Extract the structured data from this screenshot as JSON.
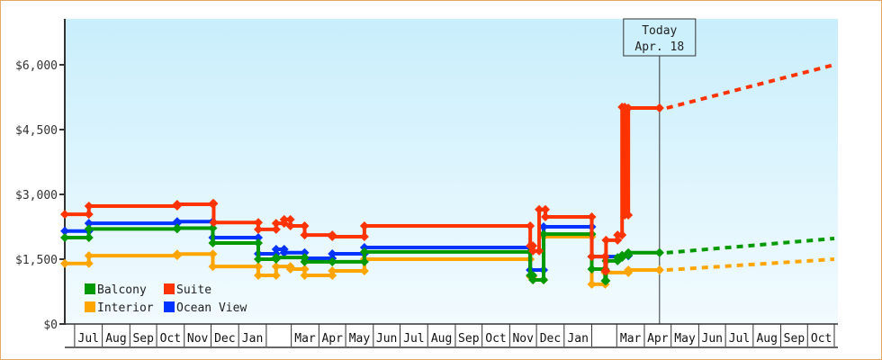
{
  "chart_data": {
    "type": "line",
    "step": true,
    "x_type": "date",
    "xlim": [
      "2016-06-20",
      "2018-10-31"
    ],
    "ylim": [
      0,
      7000
    ],
    "y_ticks": [
      {
        "value": 0,
        "label": "$0"
      },
      {
        "value": 1500,
        "label": "$1,500"
      },
      {
        "value": 3000,
        "label": "$3,000"
      },
      {
        "value": 4500,
        "label": "$4,500"
      },
      {
        "value": 6000,
        "label": "$6,000"
      }
    ],
    "x_month_labels": [
      {
        "month": "2016-07",
        "label": "Jul"
      },
      {
        "month": "2016-08",
        "label": "Aug"
      },
      {
        "month": "2016-09",
        "label": "Sep"
      },
      {
        "month": "2016-10",
        "label": "Oct"
      },
      {
        "month": "2016-11",
        "label": "Nov"
      },
      {
        "month": "2016-12",
        "label": "Dec"
      },
      {
        "month": "2017-01",
        "label": "Jan"
      },
      {
        "month": "2017-02",
        "label": ""
      },
      {
        "month": "2017-03",
        "label": "Mar"
      },
      {
        "month": "2017-04",
        "label": "Apr"
      },
      {
        "month": "2017-05",
        "label": "May"
      },
      {
        "month": "2017-06",
        "label": "Jun"
      },
      {
        "month": "2017-07",
        "label": "Jul"
      },
      {
        "month": "2017-08",
        "label": "Aug"
      },
      {
        "month": "2017-09",
        "label": "Sep"
      },
      {
        "month": "2017-10",
        "label": "Oct"
      },
      {
        "month": "2017-11",
        "label": "Nov"
      },
      {
        "month": "2017-12",
        "label": "Dec"
      },
      {
        "month": "2018-01",
        "label": "Jan"
      },
      {
        "month": "2018-02",
        "label": ""
      },
      {
        "month": "2018-03",
        "label": "Mar"
      },
      {
        "month": "2018-04",
        "label": "Apr"
      },
      {
        "month": "2018-05",
        "label": "May"
      },
      {
        "month": "2018-06",
        "label": "Jun"
      },
      {
        "month": "2018-07",
        "label": "Jul"
      },
      {
        "month": "2018-08",
        "label": "Aug"
      },
      {
        "month": "2018-09",
        "label": "Sep"
      },
      {
        "month": "2018-10",
        "label": "Oct"
      }
    ],
    "today": {
      "date": "2018-04-18",
      "label_line1": "Today",
      "label_line2": "Apr. 18"
    },
    "legend_placement": "bottom-left",
    "series": [
      {
        "name": "Balcony",
        "color": "#009900",
        "points": [
          [
            "2016-06-20",
            2000
          ],
          [
            "2016-07-17",
            2200
          ],
          [
            "2016-10-24",
            2220
          ],
          [
            "2016-12-03",
            1875
          ],
          [
            "2017-01-23",
            1500
          ],
          [
            "2017-02-12",
            1540
          ],
          [
            "2017-03-16",
            1440
          ],
          [
            "2017-04-16",
            1440
          ],
          [
            "2017-05-22",
            1670
          ],
          [
            "2017-11-24",
            1125
          ],
          [
            "2017-11-27",
            1020
          ],
          [
            "2017-12-09",
            2080
          ],
          [
            "2018-02-01",
            1270
          ],
          [
            "2018-02-16",
            1000
          ],
          [
            "2018-02-17",
            1460
          ],
          [
            "2018-03-02",
            1540
          ],
          [
            "2018-03-07",
            1590
          ],
          [
            "2018-03-14",
            1650
          ],
          [
            "2018-04-18",
            1650
          ]
        ],
        "forecast": [
          [
            "2018-04-18",
            1650
          ],
          [
            "2018-10-31",
            1980
          ]
        ]
      },
      {
        "name": "Suite",
        "color": "#ff3300",
        "points": [
          [
            "2016-06-20",
            2540
          ],
          [
            "2016-07-17",
            2730
          ],
          [
            "2016-10-24",
            2770
          ],
          [
            "2016-12-03",
            2790
          ],
          [
            "2016-12-04",
            2350
          ],
          [
            "2017-01-23",
            2190
          ],
          [
            "2017-02-12",
            2330
          ],
          [
            "2017-02-21",
            2420
          ],
          [
            "2017-02-28",
            2270
          ],
          [
            "2017-03-16",
            2060
          ],
          [
            "2017-04-16",
            2020
          ],
          [
            "2017-05-22",
            2270
          ],
          [
            "2017-11-24",
            1810
          ],
          [
            "2017-11-27",
            1690
          ],
          [
            "2017-12-04",
            2650
          ],
          [
            "2017-12-11",
            2480
          ],
          [
            "2018-02-01",
            1560
          ],
          [
            "2018-02-16",
            1230
          ],
          [
            "2018-02-17",
            1940
          ],
          [
            "2018-03-02",
            2060
          ],
          [
            "2018-03-07",
            5020
          ],
          [
            "2018-03-10",
            2520
          ],
          [
            "2018-03-14",
            5000
          ],
          [
            "2018-04-18",
            5000
          ]
        ],
        "forecast": [
          [
            "2018-04-18",
            5000
          ],
          [
            "2018-10-31",
            6000
          ]
        ]
      },
      {
        "name": "Interior",
        "color": "#ffa500",
        "points": [
          [
            "2016-06-20",
            1400
          ],
          [
            "2016-07-17",
            1580
          ],
          [
            "2016-10-24",
            1620
          ],
          [
            "2016-12-03",
            1330
          ],
          [
            "2017-01-23",
            1125
          ],
          [
            "2017-02-12",
            1330
          ],
          [
            "2017-02-28",
            1270
          ],
          [
            "2017-03-16",
            1125
          ],
          [
            "2017-04-16",
            1230
          ],
          [
            "2017-05-22",
            1500
          ],
          [
            "2017-11-24",
            1100
          ],
          [
            "2017-11-27",
            1020
          ],
          [
            "2017-12-09",
            2020
          ],
          [
            "2018-02-01",
            920
          ],
          [
            "2018-02-16",
            1190
          ],
          [
            "2018-03-14",
            1250
          ],
          [
            "2018-04-18",
            1250
          ]
        ],
        "forecast": [
          [
            "2018-04-18",
            1250
          ],
          [
            "2018-10-31",
            1500
          ]
        ]
      },
      {
        "name": "Ocean View",
        "color": "#0033ff",
        "points": [
          [
            "2016-06-20",
            2150
          ],
          [
            "2016-07-17",
            2330
          ],
          [
            "2016-10-24",
            2370
          ],
          [
            "2016-12-03",
            2000
          ],
          [
            "2017-01-23",
            1625
          ],
          [
            "2017-02-12",
            1730
          ],
          [
            "2017-02-21",
            1650
          ],
          [
            "2017-03-16",
            1520
          ],
          [
            "2017-04-16",
            1625
          ],
          [
            "2017-05-22",
            1770
          ],
          [
            "2017-11-24",
            1250
          ],
          [
            "2017-12-09",
            2250
          ],
          [
            "2018-02-01",
            1560
          ],
          [
            "2018-03-07",
            1580
          ],
          [
            "2018-03-14",
            1580
          ]
        ]
      }
    ]
  }
}
